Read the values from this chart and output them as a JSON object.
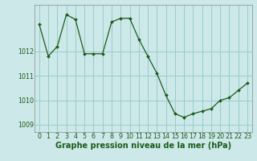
{
  "x": [
    0,
    1,
    2,
    3,
    4,
    5,
    6,
    7,
    8,
    9,
    10,
    11,
    12,
    13,
    14,
    15,
    16,
    17,
    18,
    19,
    20,
    21,
    22,
    23
  ],
  "y": [
    1013.1,
    1011.8,
    1012.2,
    1013.5,
    1013.3,
    1011.9,
    1011.9,
    1011.9,
    1013.2,
    1013.35,
    1013.35,
    1012.5,
    1011.8,
    1011.1,
    1010.2,
    1009.45,
    1009.3,
    1009.45,
    1009.55,
    1009.65,
    1010.0,
    1010.1,
    1010.4,
    1010.7
  ],
  "line_color": "#1a5c1a",
  "marker_color": "#1a5c1a",
  "bg_color": "#cce8e8",
  "grid_color": "#99cccc",
  "xlabel": "Graphe pression niveau de la mer (hPa)",
  "xlabel_color": "#1a5c1a",
  "ylabel_ticks": [
    1009,
    1010,
    1011,
    1012
  ],
  "ylim": [
    1008.7,
    1013.9
  ],
  "xlim": [
    -0.5,
    23.5
  ],
  "xtick_labels": [
    "0",
    "1",
    "2",
    "3",
    "4",
    "5",
    "6",
    "7",
    "8",
    "9",
    "10",
    "11",
    "12",
    "13",
    "14",
    "15",
    "16",
    "17",
    "18",
    "19",
    "20",
    "21",
    "22",
    "23"
  ],
  "tick_fontsize": 5.8,
  "xlabel_fontsize": 7.0
}
